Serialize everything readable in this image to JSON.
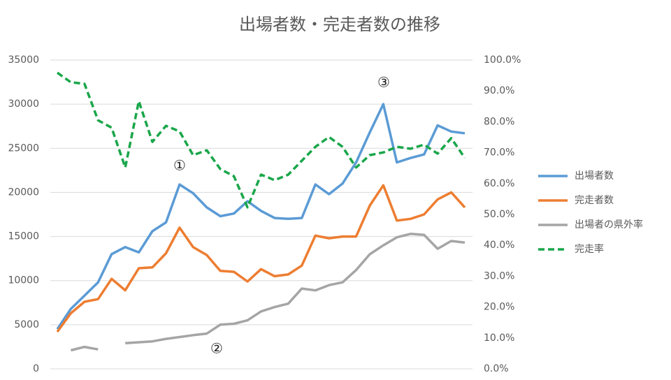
{
  "chart_data": {
    "type": "line",
    "title": "出場者数・完走者数の推移",
    "categories": [
      null,
      null,
      null,
      null,
      null,
      null,
      null,
      null,
      null,
      null,
      null,
      null,
      null,
      null,
      null,
      null,
      null,
      null,
      null,
      null,
      null,
      null,
      null,
      null,
      null,
      null,
      null,
      null,
      null,
      null,
      null
    ],
    "series": [
      {
        "name": "出場者数",
        "color": "#5b9bd5",
        "dash": false,
        "axis": "y",
        "values": [
          4500,
          6800,
          8300,
          9800,
          13000,
          13800,
          13200,
          15600,
          16600,
          20900,
          19900,
          18300,
          17300,
          17600,
          19000,
          17900,
          17100,
          17000,
          17100,
          20900,
          19800,
          21000,
          23400,
          26800,
          30000,
          23400,
          23900,
          24300,
          27600,
          26900,
          26700
        ]
      },
      {
        "name": "完走者数",
        "color": "#ed7d31",
        "dash": false,
        "axis": "y",
        "values": [
          4200,
          6300,
          7600,
          7900,
          10200,
          8900,
          11400,
          11500,
          13100,
          16000,
          13800,
          12900,
          11100,
          11000,
          9900,
          11300,
          10500,
          10700,
          11700,
          15100,
          14800,
          15000,
          15000,
          18500,
          20800,
          16800,
          17000,
          17500,
          19200,
          20000,
          18300
        ]
      },
      {
        "name": "出場者の県外率",
        "color": "#a5a5a5",
        "dash": false,
        "axis": "y2",
        "values": [
          null,
          6.0,
          7.1,
          6.3,
          null,
          8.3,
          8.6,
          8.9,
          9.7,
          10.3,
          10.9,
          11.4,
          14.3,
          14.6,
          15.7,
          18.6,
          20.0,
          21.1,
          26.0,
          25.4,
          27.1,
          28.0,
          32.0,
          37.1,
          40.0,
          42.6,
          43.7,
          43.4,
          38.9,
          41.4,
          40.9
        ]
      },
      {
        "name": "完走率",
        "color": "#1aa64a",
        "dash": true,
        "axis": "y2",
        "values": [
          95.9,
          92.8,
          92.3,
          80.5,
          78.1,
          65.2,
          86.7,
          73.5,
          78.7,
          76.9,
          69.2,
          70.8,
          64.7,
          62.4,
          52.3,
          62.9,
          61.1,
          62.9,
          67.4,
          71.9,
          75.1,
          71.9,
          65.2,
          69.2,
          70.1,
          71.9,
          71.3,
          72.6,
          69.7,
          74.7,
          68.3
        ]
      }
    ],
    "ylim": [
      0,
      35000
    ],
    "yticks": [
      0,
      5000,
      10000,
      15000,
      20000,
      25000,
      30000,
      35000
    ],
    "y2lim": [
      0,
      100
    ],
    "y2ticks": [
      {
        "value": 0,
        "label": "0.0%"
      },
      {
        "value": 10,
        "label": "10.0%"
      },
      {
        "value": 20,
        "label": "20.0%"
      },
      {
        "value": 30,
        "label": "30.0%"
      },
      {
        "value": 40,
        "label": "40.0%"
      },
      {
        "value": 50,
        "label": "50.0%"
      },
      {
        "value": 60,
        "label": "60.0%"
      },
      {
        "value": 70,
        "label": "70.0%"
      },
      {
        "value": 80,
        "label": "80.0%"
      },
      {
        "value": 90,
        "label": "90.0%"
      },
      {
        "value": 100,
        "label": "100.0%"
      }
    ],
    "grid": true,
    "legend": "right",
    "annotations": [
      "①",
      "②",
      "③"
    ]
  }
}
